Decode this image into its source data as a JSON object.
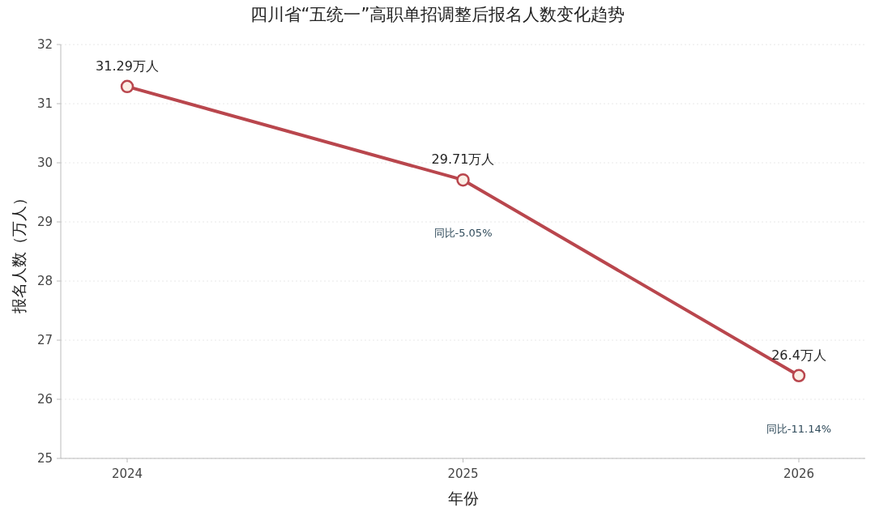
{
  "chart_data": {
    "type": "line",
    "title": "四川省“五统一”高职单招调整后报名人数变化趋势",
    "xlabel": "年份",
    "ylabel": "报名人数（万人）",
    "categories": [
      "2024",
      "2025",
      "2026"
    ],
    "series": [
      {
        "color": "#b9464d",
        "values": [
          31.29,
          29.71,
          26.4
        ],
        "value_labels": [
          "31.29万人",
          "29.71万人",
          "26.4万人"
        ]
      }
    ],
    "ylim": [
      25,
      32
    ],
    "yticks": [
      25,
      26,
      27,
      28,
      29,
      30,
      31,
      32
    ],
    "grid": "y",
    "marker": "circle",
    "line_style": "solid",
    "annotations": [
      "同比-5.05%",
      "同比-11.14%"
    ]
  }
}
